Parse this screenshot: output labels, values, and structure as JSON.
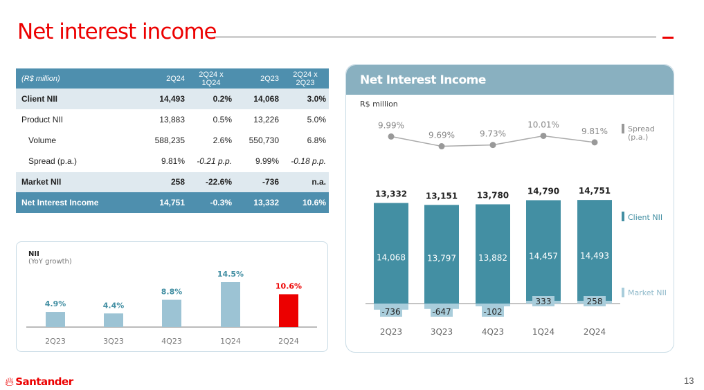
{
  "header": {
    "title": "Net interest income"
  },
  "table": {
    "columns": [
      "(R$ million)",
      "2Q24",
      "2Q24 x 1Q24",
      "2Q23",
      "2Q24 x 2Q23"
    ],
    "rows": [
      {
        "label": "Client NII",
        "v": [
          "14,493",
          "0.2%",
          "14,068",
          "3.0%"
        ],
        "style": "shade"
      },
      {
        "label": "Product NII",
        "v": [
          "13,883",
          "0.5%",
          "13,226",
          "5.0%"
        ],
        "style": "plain"
      },
      {
        "label": "Volume",
        "v": [
          "588,235",
          "2.6%",
          "550,730",
          "6.8%"
        ],
        "style": "plain",
        "indent": true
      },
      {
        "label": "Spread (p.a.)",
        "v": [
          "9.81%",
          "-0.21 p.p.",
          "9.99%",
          "-0.18 p.p."
        ],
        "style": "plain",
        "indent": true,
        "italic_cols": [
          1,
          3
        ]
      },
      {
        "label": "Market NII",
        "v": [
          "258",
          "-22.6%",
          "-736",
          "n.a."
        ],
        "style": "shade"
      },
      {
        "label": "Net Interest Income",
        "v": [
          "14,751",
          "-0.3%",
          "13,332",
          "10.6%"
        ],
        "style": "total"
      }
    ]
  },
  "chart_data": [
    {
      "type": "bar",
      "title": "NII",
      "subtitle": "(YoY growth)",
      "categories": [
        "2Q23",
        "3Q23",
        "4Q23",
        "1Q24",
        "2Q24"
      ],
      "values": [
        4.9,
        4.4,
        8.8,
        14.5,
        10.6
      ],
      "labels": [
        "4.9%",
        "4.4%",
        "8.8%",
        "14.5%",
        "10.6%"
      ],
      "colors": [
        "#9cc3d4",
        "#9cc3d4",
        "#9cc3d4",
        "#9cc3d4",
        "#ec0000"
      ]
    },
    {
      "type": "bar",
      "title": "Net Interest Income",
      "ylabel": "R$ million",
      "categories": [
        "2Q23",
        "3Q23",
        "4Q23",
        "1Q24",
        "2Q24"
      ],
      "totals": [
        13332,
        13151,
        13780,
        14790,
        14751
      ],
      "totals_labels": [
        "13,332",
        "13,151",
        "13,780",
        "14,790",
        "14,751"
      ],
      "series": [
        {
          "name": "Client NII",
          "values": [
            14068,
            13797,
            13882,
            14457,
            14493
          ],
          "labels": [
            "14,068",
            "13,797",
            "13,882",
            "14,457",
            "14,493"
          ],
          "color": "#438fa3"
        },
        {
          "name": "Market NII",
          "values": [
            -736,
            -647,
            -102,
            333,
            258
          ],
          "labels": [
            "-736",
            "-647",
            "-102",
            "333",
            "258"
          ],
          "color": "#a9cddb"
        }
      ],
      "spread": {
        "name": "Spread (p.a.)",
        "values": [
          9.99,
          9.69,
          9.73,
          10.01,
          9.81
        ],
        "labels": [
          "9.99%",
          "9.69%",
          "9.73%",
          "10.01%",
          "9.81%"
        ],
        "color": "#999999"
      },
      "legend": {
        "spread": "Spread",
        "spread2": "(p.a.)",
        "client": "Client NII",
        "market": "Market NII"
      }
    }
  ],
  "footer": {
    "brand": "Santander",
    "page": "13"
  },
  "colors": {
    "accent": "#ec0000",
    "table_header": "#4e8fae",
    "table_shade": "#dfe9ef"
  }
}
